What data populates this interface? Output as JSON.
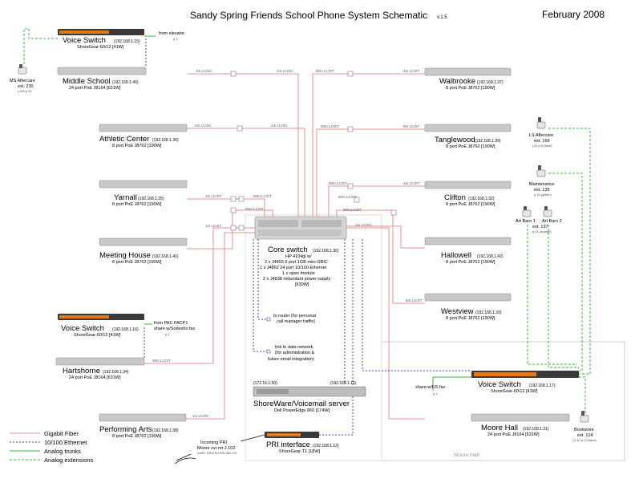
{
  "header": {
    "title": "Sandy Spring Friends School Phone System Schematic",
    "version": "v.1.5",
    "date": "February 2008"
  },
  "colors": {
    "fiber": "#e8928f",
    "ethernet": "#4444bb",
    "trunk": "#33bb33",
    "extension": "#33bb33"
  },
  "nodes": {
    "voice_ms": {
      "name": "Voice Switch",
      "ip": "(192.168.1.15)",
      "sub": "ShoreGear-60/12 [41W]"
    },
    "middle_school": {
      "name": "Middle School",
      "ip": "(192.168.1.40)",
      "sub": "24 port PoE J8164 [631W]"
    },
    "athletic": {
      "name": "Athletic Center",
      "ip": "(192.168.1.36)",
      "sub": "8 port PoE J8762 [190W]"
    },
    "yarnall": {
      "name": "Yarnall",
      "ip": "(192.168.1.35)",
      "sub": "8 port PoE J8762 [190W]"
    },
    "meeting_house": {
      "name": "Meeting House",
      "ip": "(192.168.1.41)",
      "sub": "8 port PoE J8762 [190W]"
    },
    "voice_pac": {
      "name": "Voice Switch",
      "ip": "(192.168.1.16)",
      "sub": "ShoreGear-60/12 [41W]"
    },
    "hartshorne": {
      "name": "Hartshorne",
      "ip": "(192.168.1.34)",
      "sub": "24 port PoE J8164 [631W]"
    },
    "performing_arts": {
      "name": "Performing Arts",
      "ip": "(192.168.1.38)",
      "sub": "8 port PoE J8762 [190W]"
    },
    "walbrooke": {
      "name": "Walbrooke",
      "ip": "(192.168.1.37)",
      "sub": "8 port PoE J8762 [190W]"
    },
    "tanglewood": {
      "name": "Tanglewood",
      "ip": "(192.168.1.39)",
      "sub": "8 port PoE J8762 [190W]"
    },
    "clifton": {
      "name": "Clifton",
      "ip": "(192.168.1.32)",
      "sub": "8 port PoE J8762 [190W]"
    },
    "hallowell": {
      "name": "Hallowell",
      "ip": "(192.168.1.42)",
      "sub": "8 port PoE J8762 [190W]"
    },
    "westview": {
      "name": "Westview",
      "ip": "(192.168.1.33)",
      "sub": "8 port PoE J8762 [190W]"
    },
    "voice_mh": {
      "name": "Voice Switch",
      "ip": "(192.168.1.17)",
      "sub": "ShoreGear-60/12 [41W]"
    },
    "moore_hall": {
      "name": "Moore Hall",
      "ip": "(192.168.1.31)",
      "sub": "24 port PoE J8164 [631W]"
    }
  },
  "core": {
    "name": "Core switch",
    "ip": "(192.168.1.30)",
    "lines": [
      "HP 4104gl w/",
      "2 x J4893 6 port 1GB mini-GBIC",
      "1 x J4862 24 port 10/100 Ethernet",
      "1 x open module",
      "2 x J4838 redundant power supply",
      "[630W]"
    ]
  },
  "router_note": [
    "to router (for personal",
    "call manager traffic)"
  ],
  "data_note": [
    "link to data network",
    "(for administration &",
    "future email integration)"
  ],
  "server": {
    "name": "ShoreWare/Voicemail server",
    "sub": "Dell PowerEdge 860 [174W]",
    "ip_left": "(172.16.1.50)",
    "ip_right": "(192.168.1.11)"
  },
  "pri": {
    "name": "PRI interface",
    "ip": "(192.168.1.12)",
    "sub": "ShoreGear-T1 [18W]",
    "incoming": [
      "Incoming PRI",
      "Moore svr rm J.102"
    ],
    "tiny": "DetID 30HCFU 000 960 CO"
  },
  "phones": {
    "ms_aftercare": {
      "name": "MS Aftercare",
      "ext": "ext. 230",
      "loc": "j.109 p.12"
    },
    "ls_aftercare": {
      "name": "LS Aftercare",
      "ext": "ext. 169",
      "loc": "j.41 p.9 (blue)"
    },
    "maintenance": {
      "name": "Maintenance",
      "ext": "ext. 135",
      "loc": "p.10 (green)"
    },
    "art_barn": {
      "name1": "Art Barn 1",
      "name2": "Art Barn 2",
      "ext": "ext. 137",
      "loc": "p.11 (orange)"
    },
    "bookstore": {
      "name": "Bookstore",
      "ext": "ext. 124",
      "loc": "j.0.10 p.13 (blue)"
    }
  },
  "annotations": {
    "from_elevator": "from elevator",
    "from_elevator_p": "p.1",
    "from_pac": [
      "from PAC FACP1",
      "share w/Sodexho fax"
    ],
    "from_pac_p": "p.1",
    "share_us_fax": "share w/US fax",
    "share_us_fax_p": "p.1",
    "moore_hall_area": "Moore Hall"
  },
  "link_labels": {
    "ms_a": "1m LC/SC",
    "ms_b": "1m LC/SC",
    "ms_c": "50m LC/ST",
    "ms_d": "2m LC/ST",
    "ath_a": "2m LC/SC",
    "ath_b": "1m LC/SC",
    "tang_a": "50m LC/ST",
    "tang_b": "9m LC/ST",
    "yar_a": "1m LC/ST",
    "yar_b": "50m LC/ST",
    "yar_c": "50m LC/ST",
    "cli_a": "50m LC/ST",
    "cli_b": "50m LC/ST",
    "cli_c": "1m LC/ST",
    "mh_a": "1m LC/ST",
    "hal_a": "50m LC/ST",
    "hal_b": "1m LC/SC",
    "west_a": "5m LC/ST",
    "hart_a": "30m LC/ST",
    "pa_a": "1m LC/SC"
  },
  "legend": [
    {
      "label": "Gigabit Fiber",
      "color": "#e8928f",
      "style": "solid"
    },
    {
      "label": "10/100 Ethernet",
      "color": "#4444bb",
      "style": "dotted"
    },
    {
      "label": "Analog trunks",
      "color": "#33bb33",
      "style": "solid"
    },
    {
      "label": "Analog extensions",
      "color": "#33bb33",
      "style": "dashed"
    }
  ]
}
